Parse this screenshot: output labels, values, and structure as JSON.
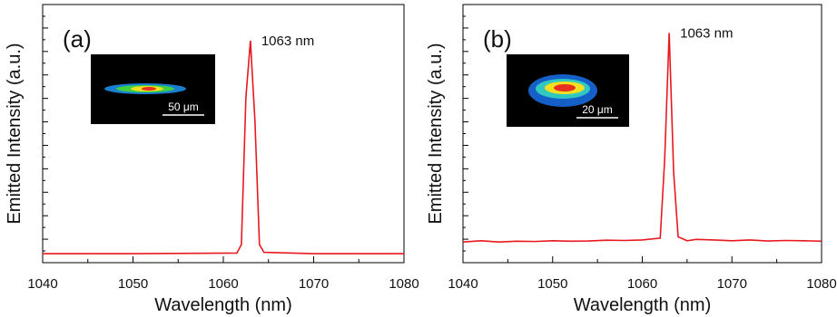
{
  "chart_data": [
    {
      "type": "line",
      "panel_label": "(a)",
      "annotation": "1063 nm",
      "inset_scale": "50 μm",
      "xlabel": "Wavelength (nm)",
      "ylabel": "Emitted Intensity (a.u.)",
      "x": [
        1040,
        1050,
        1061.5,
        1062,
        1062.5,
        1063,
        1063.5,
        1064,
        1064.5,
        1070,
        1080
      ],
      "series": [
        {
          "color": "#e8191e",
          "values": [
            0.035,
            0.035,
            0.037,
            0.07,
            0.64,
            0.86,
            0.55,
            0.07,
            0.04,
            0.035,
            0.035
          ]
        }
      ],
      "xlim": [
        1040,
        1080
      ],
      "xticks": [
        1040,
        1050,
        1060,
        1070,
        1080
      ],
      "ylim": [
        0,
        1
      ]
    },
    {
      "type": "line",
      "panel_label": "(b)",
      "annotation": "1063 nm",
      "inset_scale": "20 μm",
      "xlabel": "Wavelength (nm)",
      "ylabel": "Emitted Intensity (a.u.)",
      "x": [
        1040,
        1042,
        1044,
        1046,
        1048,
        1050,
        1052,
        1054,
        1056,
        1058,
        1060,
        1062,
        1062.5,
        1063,
        1063.5,
        1064,
        1065,
        1066,
        1068,
        1070,
        1072,
        1074,
        1076,
        1078,
        1080
      ],
      "series": [
        {
          "color": "#e8191e",
          "values": [
            0.08,
            0.085,
            0.08,
            0.083,
            0.082,
            0.085,
            0.083,
            0.084,
            0.087,
            0.086,
            0.088,
            0.095,
            0.4,
            0.89,
            0.35,
            0.1,
            0.085,
            0.09,
            0.088,
            0.085,
            0.088,
            0.084,
            0.086,
            0.085,
            0.083
          ]
        }
      ],
      "xlim": [
        1040,
        1080
      ],
      "xticks": [
        1040,
        1050,
        1060,
        1070,
        1080
      ],
      "ylim": [
        0,
        1
      ]
    }
  ]
}
